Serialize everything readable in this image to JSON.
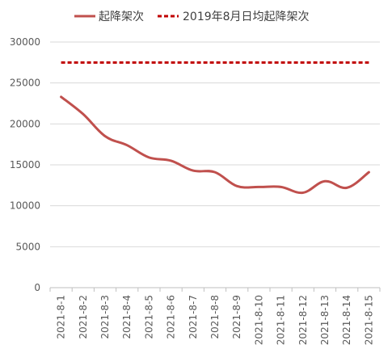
{
  "chart_data": {
    "type": "line",
    "categories": [
      "2021-8-1",
      "2021-8-2",
      "2021-8-3",
      "2021-8-4",
      "2021-8-5",
      "2021-8-6",
      "2021-8-7",
      "2021-8-8",
      "2021-8-9",
      "2021-8-10",
      "2021-8-11",
      "2021-8-12",
      "2021-8-13",
      "2021-8-14",
      "2021-8-15"
    ],
    "series": [
      {
        "name": "起降架次",
        "values": [
          23300,
          21200,
          18500,
          17400,
          15900,
          15500,
          14300,
          14100,
          12400,
          12300,
          12300,
          11600,
          13000,
          12200,
          14100
        ],
        "color": "#C0504D",
        "style": "solid"
      },
      {
        "name": "2019年8月日均起降架次",
        "values": [
          27500,
          27500,
          27500,
          27500,
          27500,
          27500,
          27500,
          27500,
          27500,
          27500,
          27500,
          27500,
          27500,
          27500,
          27500
        ],
        "color": "#C00000",
        "style": "dashed"
      }
    ],
    "yticks": [
      "0",
      "5000",
      "10000",
      "15000",
      "20000",
      "25000",
      "30000"
    ],
    "ylim": [
      0,
      30000
    ],
    "grid": true,
    "legend": "top"
  }
}
